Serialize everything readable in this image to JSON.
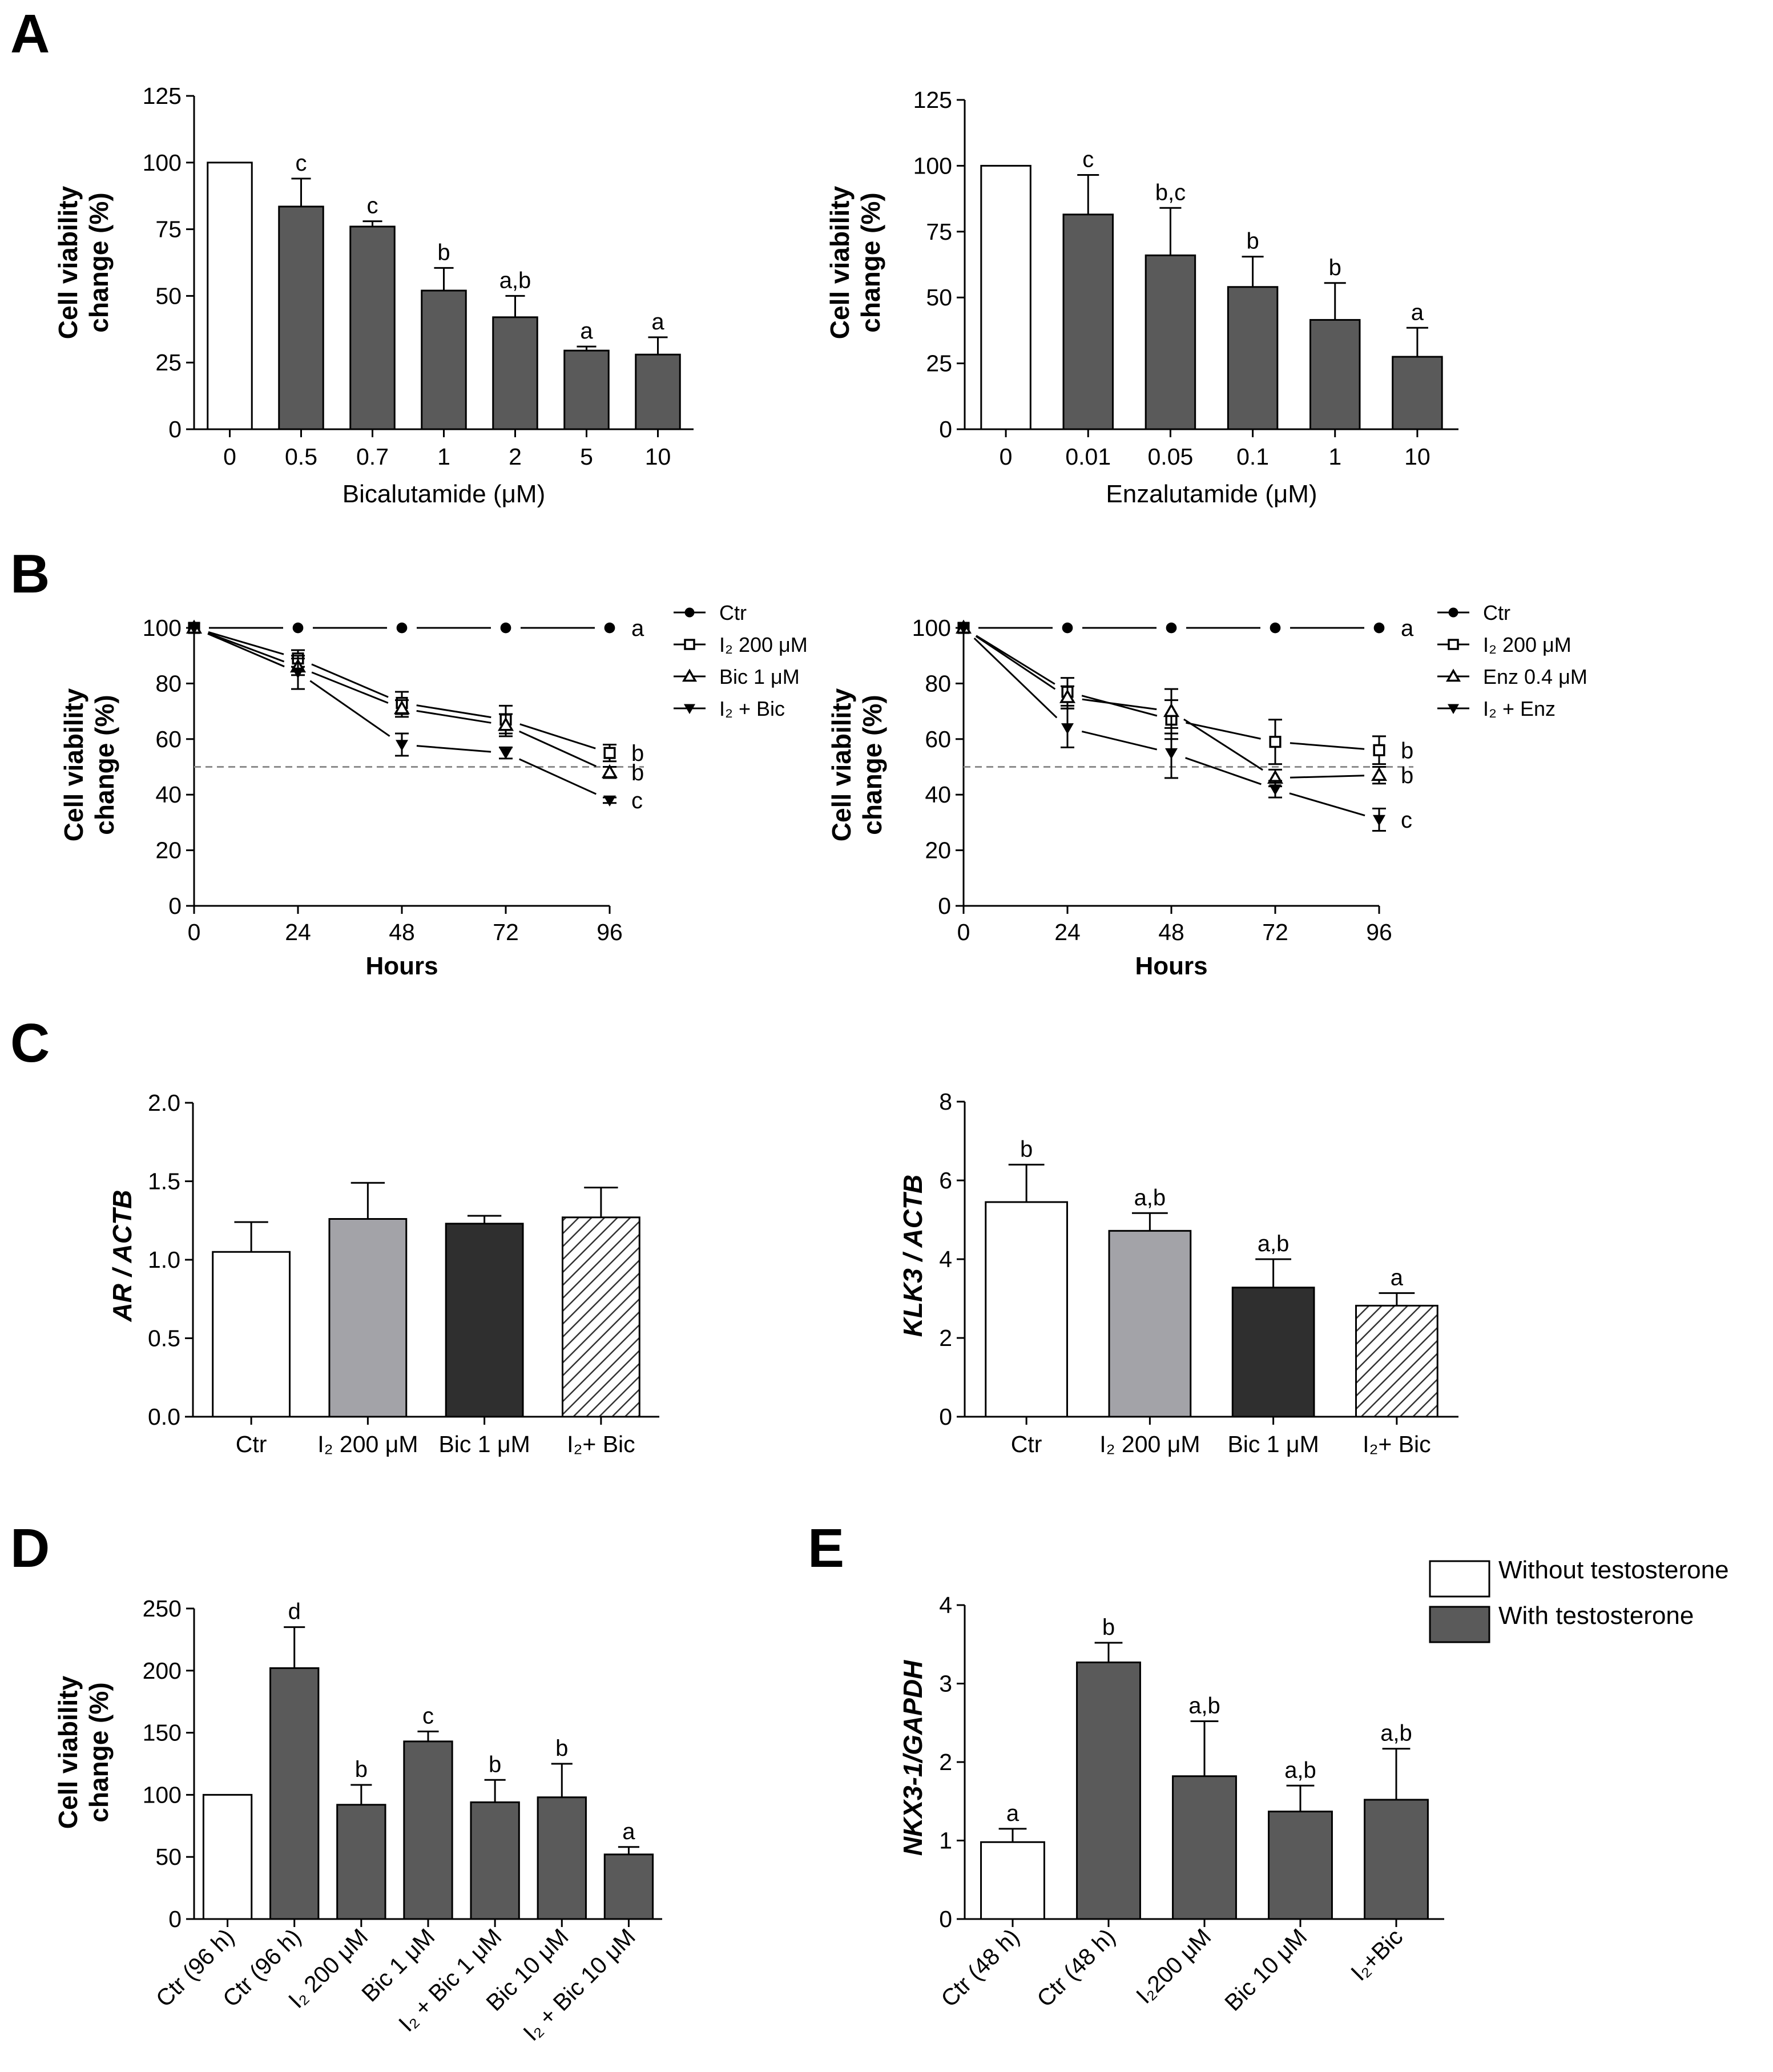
{
  "panels": {
    "A": "A",
    "B": "B",
    "C": "C",
    "D": "D",
    "E": "E"
  },
  "colors": {
    "dark": "#5a5a5a",
    "black": "#2f2f2f",
    "light": "#a3a3a8",
    "white": "#ffffff",
    "dash": "#8c8c8c"
  },
  "chart_data": [
    {
      "id": "A1",
      "type": "bar",
      "ylabel_line1": "Cell viability",
      "ylabel_line2": "change (%)",
      "xlabel": "Bicalutamide (μM)",
      "ylim": [
        0,
        125
      ],
      "yticks": [
        "0",
        "25",
        "50",
        "75",
        "100",
        "125"
      ],
      "categories": [
        "0",
        "0.5",
        "0.7",
        "1",
        "2",
        "5",
        "10"
      ],
      "values": [
        100,
        83.5,
        76,
        52,
        42,
        29.5,
        28
      ],
      "errors": [
        0,
        10.5,
        2,
        8.5,
        8,
        1.5,
        6.5
      ],
      "fills": [
        "white",
        "dark",
        "dark",
        "dark",
        "dark",
        "dark",
        "dark"
      ],
      "letters": [
        "",
        "c",
        "c",
        "b",
        "a,b",
        "a",
        "a"
      ]
    },
    {
      "id": "A2",
      "type": "bar",
      "ylabel_line1": "Cell viability",
      "ylabel_line2": "change (%)",
      "xlabel": "Enzalutamide (μM)",
      "ylim": [
        0,
        125
      ],
      "yticks": [
        "0",
        "25",
        "50",
        "75",
        "100",
        "125"
      ],
      "categories": [
        "0",
        "0.01",
        "0.05",
        "0.1",
        "1",
        "10"
      ],
      "values": [
        100,
        81.5,
        66,
        54,
        41.5,
        27.5
      ],
      "errors": [
        0,
        15,
        18,
        11.5,
        14,
        11
      ],
      "fills": [
        "white",
        "dark",
        "dark",
        "dark",
        "dark",
        "dark"
      ],
      "letters": [
        "",
        "c",
        "b,c",
        "b",
        "b",
        "a"
      ]
    },
    {
      "id": "B1",
      "type": "line",
      "ylabel_line1": "Cell viability",
      "ylabel_line2": "change (%)",
      "xlabel": "Hours",
      "ylim": [
        0,
        100
      ],
      "yticks": [
        "0",
        "20",
        "40",
        "60",
        "80",
        "100"
      ],
      "x": [
        0,
        24,
        48,
        72,
        96
      ],
      "xticks": [
        "0",
        "24",
        "48",
        "72",
        "96"
      ],
      "reference_line": 50,
      "series": [
        {
          "name": "Ctr",
          "marker": "circle",
          "values": [
            100,
            100,
            100,
            100,
            100
          ],
          "errors": [
            0,
            0,
            0,
            0,
            0
          ],
          "letter": "a"
        },
        {
          "name": "I₂ 200 μM",
          "marker": "square",
          "values": [
            100,
            89,
            73,
            67,
            55
          ],
          "errors": [
            0,
            3,
            4,
            5,
            3
          ],
          "letter": "b"
        },
        {
          "name": "Bic 1 μM",
          "marker": "triangle",
          "values": [
            100,
            86,
            71,
            65,
            48
          ],
          "errors": [
            0,
            3,
            3,
            4,
            2
          ],
          "letter": "b"
        },
        {
          "name": "I₂ + Bic",
          "marker": "triangle-down",
          "values": [
            100,
            84,
            58,
            55,
            38
          ],
          "errors": [
            0,
            6,
            4,
            2,
            1
          ],
          "letter": "c"
        }
      ]
    },
    {
      "id": "B2",
      "type": "line",
      "ylabel_line1": "Cell viability",
      "ylabel_line2": "change (%)",
      "xlabel": "Hours",
      "ylim": [
        0,
        100
      ],
      "yticks": [
        "0",
        "20",
        "40",
        "60",
        "80",
        "100"
      ],
      "x": [
        0,
        24,
        48,
        72,
        96
      ],
      "xticks": [
        "0",
        "24",
        "48",
        "72",
        "96"
      ],
      "reference_line": 50,
      "series": [
        {
          "name": "Ctr",
          "marker": "circle",
          "values": [
            100,
            100,
            100,
            100,
            100
          ],
          "errors": [
            0,
            0,
            0,
            0,
            0
          ],
          "letter": "a"
        },
        {
          "name": "I₂ 200 μM",
          "marker": "square",
          "values": [
            100,
            77,
            67,
            59,
            56
          ],
          "errors": [
            0,
            5,
            7,
            8,
            5
          ],
          "letter": "b"
        },
        {
          "name": "Enz 0.4 μM",
          "marker": "triangle",
          "values": [
            100,
            75,
            70,
            46,
            47
          ],
          "errors": [
            0,
            4,
            8,
            3,
            3
          ],
          "letter": "b"
        },
        {
          "name": "I₂ + Enz",
          "marker": "triangle-down",
          "values": [
            100,
            64,
            55,
            42,
            31
          ],
          "errors": [
            0,
            7,
            9,
            3,
            4
          ],
          "letter": "c"
        }
      ]
    },
    {
      "id": "C1",
      "type": "bar",
      "ylabel": "AR / ACTB",
      "ylim": [
        0,
        2
      ],
      "yticks": [
        "0.0",
        "0.5",
        "1.0",
        "1.5",
        "2.0"
      ],
      "categories": [
        "Ctr",
        "I₂ 200 μM",
        "Bic 1 μM",
        "I₂+ Bic"
      ],
      "values": [
        1.05,
        1.26,
        1.23,
        1.27
      ],
      "errors": [
        0.19,
        0.23,
        0.05,
        0.19
      ],
      "fills": [
        "white",
        "light",
        "black",
        "hatch"
      ],
      "letters": [
        "",
        "",
        "",
        ""
      ]
    },
    {
      "id": "C2",
      "type": "bar",
      "ylabel": "KLK3 / ACTB",
      "ylim": [
        0,
        8
      ],
      "yticks": [
        "0",
        "2",
        "4",
        "6",
        "8"
      ],
      "categories": [
        "Ctr",
        "I₂ 200 μM",
        "Bic 1 μM",
        "I₂+ Bic"
      ],
      "values": [
        5.45,
        4.72,
        3.28,
        2.82
      ],
      "errors": [
        0.95,
        0.45,
        0.72,
        0.32
      ],
      "fills": [
        "white",
        "light",
        "black",
        "hatch"
      ],
      "letters": [
        "b",
        "a,b",
        "a,b",
        "a"
      ]
    },
    {
      "id": "D",
      "type": "bar",
      "ylabel_line1": "Cell viability",
      "ylabel_line2": "change (%)",
      "ylim": [
        0,
        250
      ],
      "yticks": [
        "0",
        "50",
        "100",
        "150",
        "200",
        "250"
      ],
      "categories": [
        "Ctr (96 h)",
        "Ctr (96 h)",
        "I₂ 200 μM",
        "Bic 1 μM",
        "I₂ + Bic 1 μM",
        "Bic 10 μM",
        "I₂ + Bic 10 μM"
      ],
      "values": [
        100,
        202,
        92,
        143,
        94,
        98,
        52
      ],
      "errors": [
        0,
        33,
        16,
        8,
        18,
        27,
        6
      ],
      "fills": [
        "white",
        "dark",
        "dark",
        "dark",
        "dark",
        "dark",
        "dark"
      ],
      "letters": [
        "",
        "d",
        "b",
        "c",
        "b",
        "b",
        "a"
      ]
    },
    {
      "id": "E",
      "type": "bar",
      "ylabel": "NKX3-1/GAPDH",
      "ylim": [
        0,
        4
      ],
      "yticks": [
        "0",
        "1",
        "2",
        "3",
        "4"
      ],
      "categories": [
        "Ctr (48 h)",
        "Ctr (48 h)",
        "I₂200 μM",
        "Bic 10 μM",
        "I₂+Bic"
      ],
      "values": [
        0.98,
        3.27,
        1.82,
        1.37,
        1.52
      ],
      "errors": [
        0.17,
        0.25,
        0.7,
        0.33,
        0.65
      ],
      "fills": [
        "white",
        "dark",
        "dark",
        "dark",
        "dark"
      ],
      "letters": [
        "a",
        "b",
        "a,b",
        "a,b",
        "a,b"
      ],
      "legend": [
        {
          "label": "Without testosterone",
          "fill": "white"
        },
        {
          "label": "With testosterone",
          "fill": "dark"
        }
      ]
    }
  ]
}
